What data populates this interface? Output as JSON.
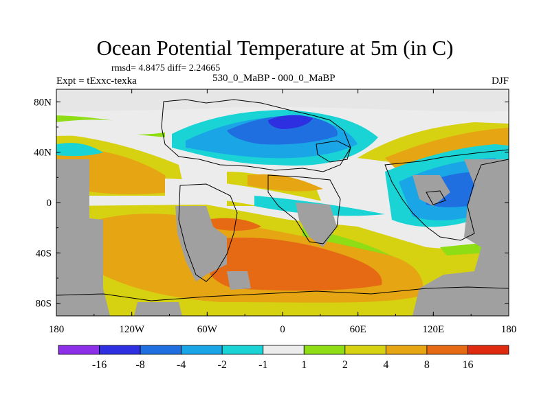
{
  "title": "Ocean Potential Temperature at 5m (in C)",
  "stats_text": "rmsd= 4.8475 diff= 2.24665",
  "left_label": "Expt = tExxc-texka",
  "center_label": "530_0_MaBP - 000_0_MaBP",
  "right_label": "DJF",
  "map": {
    "projection": "cylindrical-equidistant",
    "lon_range": [
      -180,
      180
    ],
    "lat_range": [
      -90,
      90
    ],
    "x_ticks": [
      {
        "value": -180,
        "label": "180"
      },
      {
        "value": -120,
        "label": "120W"
      },
      {
        "value": -60,
        "label": "60W"
      },
      {
        "value": 0,
        "label": "0"
      },
      {
        "value": 60,
        "label": "60E"
      },
      {
        "value": 120,
        "label": "120E"
      },
      {
        "value": 180,
        "label": "180"
      }
    ],
    "y_ticks": [
      {
        "value": 80,
        "label": "80N"
      },
      {
        "value": 40,
        "label": "40N"
      },
      {
        "value": 0,
        "label": "0"
      },
      {
        "value": -40,
        "label": "40S"
      },
      {
        "value": -80,
        "label": "80S"
      }
    ],
    "land_color": "#a0a0a0"
  },
  "colorbar": {
    "levels": [
      "-16",
      "-8",
      "-4",
      "-2",
      "-1",
      "1",
      "2",
      "4",
      "8",
      "16"
    ],
    "colors": [
      "#8d2ee8",
      "#2e2fe0",
      "#1f6fe0",
      "#1aa6e6",
      "#19d3d5",
      "#ececec",
      "#8fdd14",
      "#d6d111",
      "#e6a512",
      "#e66a14",
      "#e02a10"
    ]
  }
}
